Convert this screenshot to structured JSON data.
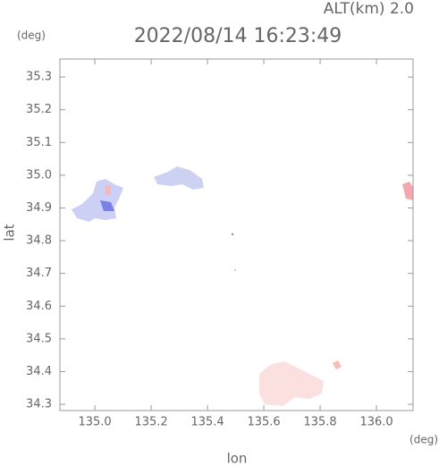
{
  "chart_data": {
    "type": "map",
    "title": "2022/08/14 16:23:49",
    "subtitle": "ALT(km) 2.0",
    "x_label": "lon",
    "y_label": "lat",
    "x_unit": "(deg)",
    "y_unit": "(deg)",
    "xlim": [
      134.876,
      136.13
    ],
    "ylim": [
      34.281,
      35.355
    ],
    "xticks": [
      {
        "value": 135.0,
        "label": "135.0"
      },
      135.2,
      135.4,
      135.6,
      135.8,
      {
        "value": 136.0,
        "label": "136.0"
      }
    ],
    "yticks": [
      34.3,
      34.4,
      34.5,
      34.6,
      34.7,
      34.8,
      34.9,
      {
        "value": 35.0,
        "label": "35.0"
      },
      35.1,
      35.2,
      35.3
    ]
  }
}
